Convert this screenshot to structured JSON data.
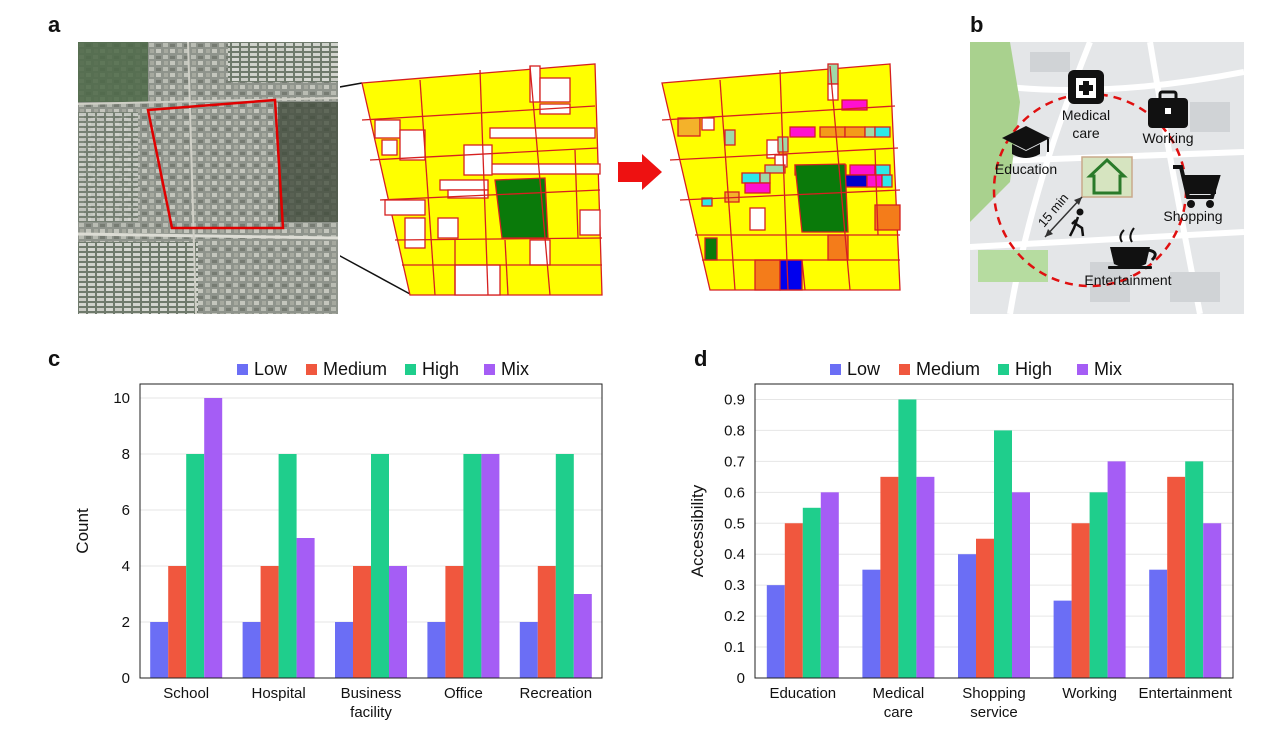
{
  "panels": {
    "a": "a",
    "b": "b",
    "c": "c",
    "d": "d"
  },
  "map_b": {
    "labels": {
      "medical": [
        "Medical",
        "care"
      ],
      "working": "Working",
      "education": "Education",
      "shopping": "Shopping",
      "entertainment": "Entertainment",
      "time": "15 min"
    },
    "icons": [
      "hospital-icon",
      "briefcase-icon",
      "graduation-cap-icon",
      "home-icon",
      "shopping-cart-icon",
      "coffee-cup-icon",
      "walking-person-icon"
    ]
  },
  "colors": {
    "low": "#6b6ef5",
    "medium": "#f0573e",
    "high": "#1fce8c",
    "mix": "#a55df5",
    "parcel_yellow": "#ffff00",
    "parcel_green": "#0a7a0a",
    "parcel_border": "#d62020"
  },
  "chart_data": [
    {
      "type": "bar",
      "categories": [
        [
          "School"
        ],
        [
          "Hospital"
        ],
        [
          "Business",
          "facility"
        ],
        [
          "Office"
        ],
        [
          "Recreation"
        ]
      ],
      "series": [
        {
          "name": "Low",
          "values": [
            2,
            2,
            2,
            2,
            2
          ]
        },
        {
          "name": "Medium",
          "values": [
            4,
            4,
            4,
            4,
            4
          ]
        },
        {
          "name": "High",
          "values": [
            8,
            8,
            8,
            8,
            8
          ]
        },
        {
          "name": "Mix",
          "values": [
            10,
            5,
            4,
            8,
            3
          ]
        }
      ],
      "ylabel": "Count",
      "xlabel": "",
      "ylim": [
        0,
        10.5
      ],
      "yticks": [
        "0",
        "2",
        "4",
        "6",
        "8",
        "10"
      ],
      "yticks_values": [
        0,
        2,
        4,
        6,
        8,
        10
      ],
      "legend_position": "top",
      "grid": true
    },
    {
      "type": "bar",
      "categories": [
        [
          "Education"
        ],
        [
          "Medical",
          "care"
        ],
        [
          "Shopping",
          "service"
        ],
        [
          "Working"
        ],
        [
          "Entertainment"
        ]
      ],
      "series": [
        {
          "name": "Low",
          "values": [
            0.3,
            0.35,
            0.4,
            0.25,
            0.35
          ]
        },
        {
          "name": "Medium",
          "values": [
            0.5,
            0.65,
            0.45,
            0.5,
            0.65
          ]
        },
        {
          "name": "High",
          "values": [
            0.55,
            0.9,
            0.8,
            0.6,
            0.7
          ]
        },
        {
          "name": "Mix",
          "values": [
            0.6,
            0.65,
            0.6,
            0.7,
            0.5
          ]
        }
      ],
      "ylabel": "Accessibility",
      "xlabel": "",
      "ylim": [
        0,
        0.95
      ],
      "yticks": [
        "0",
        "0.1",
        "0.2",
        "0.3",
        "0.4",
        "0.5",
        "0.6",
        "0.7",
        "0.8",
        "0.9"
      ],
      "yticks_values": [
        0,
        0.1,
        0.2,
        0.3,
        0.4,
        0.5,
        0.6,
        0.7,
        0.8,
        0.9
      ],
      "legend_position": "top",
      "grid": true
    }
  ]
}
